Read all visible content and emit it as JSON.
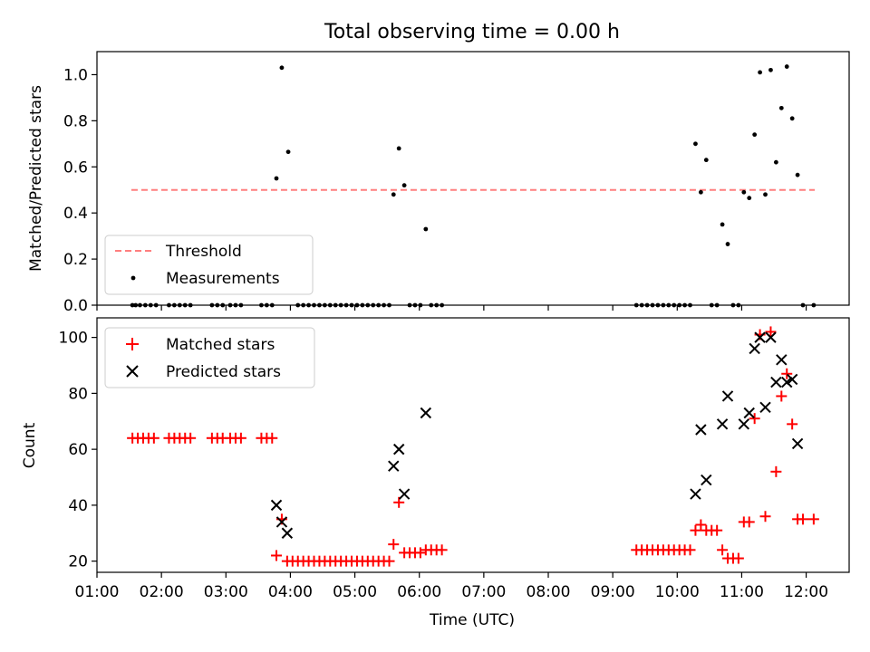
{
  "figure": {
    "title": "Total observing time = 0.00 h",
    "xlabel": "Time (UTC)"
  },
  "colors": {
    "threshold": "#ff7f7f",
    "measurement": "#000000",
    "matched": "#ff0000",
    "predicted": "#000000"
  },
  "chart_data": [
    {
      "type": "scatter",
      "ylabel": "Matched/Predicted stars",
      "xlim": [
        "01:00",
        "12:40"
      ],
      "ylim": [
        0,
        1.1
      ],
      "x_ticks": [
        "01:00",
        "02:00",
        "03:00",
        "04:00",
        "05:00",
        "06:00",
        "07:00",
        "08:00",
        "09:00",
        "10:00",
        "11:00",
        "12:00"
      ],
      "y_ticks": [
        "0.0",
        "0.2",
        "0.4",
        "0.6",
        "0.8",
        "1.0"
      ],
      "grid": false,
      "legend_position": "lower-left",
      "threshold": {
        "name": "Threshold",
        "y": 0.5,
        "x": [
          "01:32",
          "12:08"
        ]
      },
      "series": [
        {
          "name": "Measurements",
          "marker": "dot",
          "points": [
            [
              "01:33",
              0
            ],
            [
              "01:36",
              0
            ],
            [
              "01:40",
              0
            ],
            [
              "01:45",
              0
            ],
            [
              "01:50",
              0
            ],
            [
              "01:55",
              0
            ],
            [
              "02:07",
              0
            ],
            [
              "02:12",
              0
            ],
            [
              "02:17",
              0
            ],
            [
              "02:22",
              0
            ],
            [
              "02:27",
              0
            ],
            [
              "02:47",
              0
            ],
            [
              "02:52",
              0
            ],
            [
              "02:57",
              0
            ],
            [
              "03:04",
              0
            ],
            [
              "03:09",
              0
            ],
            [
              "03:14",
              0
            ],
            [
              "03:33",
              0
            ],
            [
              "03:38",
              0
            ],
            [
              "03:43",
              0
            ],
            [
              "03:47",
              0.55
            ],
            [
              "03:52",
              1.03
            ],
            [
              "03:58",
              0.665
            ],
            [
              "04:07",
              0
            ],
            [
              "04:12",
              0
            ],
            [
              "04:17",
              0
            ],
            [
              "04:22",
              0
            ],
            [
              "04:27",
              0
            ],
            [
              "04:32",
              0
            ],
            [
              "04:37",
              0
            ],
            [
              "04:42",
              0
            ],
            [
              "04:47",
              0
            ],
            [
              "04:52",
              0
            ],
            [
              "04:57",
              0
            ],
            [
              "05:02",
              0
            ],
            [
              "05:07",
              0
            ],
            [
              "05:12",
              0
            ],
            [
              "05:17",
              0
            ],
            [
              "05:22",
              0
            ],
            [
              "05:27",
              0
            ],
            [
              "05:32",
              0
            ],
            [
              "05:36",
              0.48
            ],
            [
              "05:41",
              0.68
            ],
            [
              "05:46",
              0.52
            ],
            [
              "05:51",
              0
            ],
            [
              "05:56",
              0
            ],
            [
              "06:01",
              0
            ],
            [
              "06:06",
              0.33
            ],
            [
              "06:11",
              0
            ],
            [
              "06:16",
              0
            ],
            [
              "06:21",
              0
            ],
            [
              "09:22",
              0
            ],
            [
              "09:27",
              0
            ],
            [
              "09:32",
              0
            ],
            [
              "09:37",
              0
            ],
            [
              "09:42",
              0
            ],
            [
              "09:47",
              0
            ],
            [
              "09:52",
              0
            ],
            [
              "09:57",
              0
            ],
            [
              "10:02",
              0
            ],
            [
              "10:07",
              0
            ],
            [
              "10:12",
              0
            ],
            [
              "10:17",
              0.7
            ],
            [
              "10:22",
              0.49
            ],
            [
              "10:27",
              0.63
            ],
            [
              "10:32",
              0
            ],
            [
              "10:37",
              0
            ],
            [
              "10:42",
              0.35
            ],
            [
              "10:47",
              0.265
            ],
            [
              "10:52",
              0
            ],
            [
              "10:57",
              0
            ],
            [
              "11:02",
              0.49
            ],
            [
              "11:07",
              0.465
            ],
            [
              "11:12",
              0.74
            ],
            [
              "11:17",
              1.01
            ],
            [
              "11:22",
              0.48
            ],
            [
              "11:27",
              1.02
            ],
            [
              "11:32",
              0.62
            ],
            [
              "11:37",
              0.855
            ],
            [
              "11:42",
              1.035
            ],
            [
              "11:47",
              0.81
            ],
            [
              "11:52",
              0.565
            ],
            [
              "11:57",
              0
            ],
            [
              "12:07",
              0
            ]
          ]
        }
      ]
    },
    {
      "type": "scatter",
      "ylabel": "Count",
      "xlim": [
        "01:00",
        "12:40"
      ],
      "ylim": [
        16,
        107
      ],
      "x_ticks": [
        "01:00",
        "02:00",
        "03:00",
        "04:00",
        "05:00",
        "06:00",
        "07:00",
        "08:00",
        "09:00",
        "10:00",
        "11:00",
        "12:00"
      ],
      "y_ticks": [
        "20",
        "40",
        "60",
        "80",
        "100"
      ],
      "grid": false,
      "legend_position": "upper-left",
      "series": [
        {
          "name": "Matched stars",
          "marker": "plus",
          "points": [
            [
              "01:33",
              64
            ],
            [
              "01:38",
              64
            ],
            [
              "01:43",
              64
            ],
            [
              "01:48",
              64
            ],
            [
              "01:53",
              64
            ],
            [
              "02:07",
              64
            ],
            [
              "02:12",
              64
            ],
            [
              "02:17",
              64
            ],
            [
              "02:22",
              64
            ],
            [
              "02:27",
              64
            ],
            [
              "02:47",
              64
            ],
            [
              "02:52",
              64
            ],
            [
              "02:57",
              64
            ],
            [
              "03:04",
              64
            ],
            [
              "03:09",
              64
            ],
            [
              "03:14",
              64
            ],
            [
              "03:33",
              64
            ],
            [
              "03:38",
              64
            ],
            [
              "03:43",
              64
            ],
            [
              "03:47",
              22
            ],
            [
              "03:52",
              35
            ],
            [
              "03:57",
              20
            ],
            [
              "04:02",
              20
            ],
            [
              "04:07",
              20
            ],
            [
              "04:12",
              20
            ],
            [
              "04:17",
              20
            ],
            [
              "04:22",
              20
            ],
            [
              "04:27",
              20
            ],
            [
              "04:32",
              20
            ],
            [
              "04:37",
              20
            ],
            [
              "04:42",
              20
            ],
            [
              "04:47",
              20
            ],
            [
              "04:52",
              20
            ],
            [
              "04:57",
              20
            ],
            [
              "05:02",
              20
            ],
            [
              "05:07",
              20
            ],
            [
              "05:12",
              20
            ],
            [
              "05:17",
              20
            ],
            [
              "05:22",
              20
            ],
            [
              "05:27",
              20
            ],
            [
              "05:32",
              20
            ],
            [
              "05:36",
              26
            ],
            [
              "05:41",
              41
            ],
            [
              "05:46",
              23
            ],
            [
              "05:51",
              23
            ],
            [
              "05:56",
              23
            ],
            [
              "06:01",
              23
            ],
            [
              "06:06",
              24
            ],
            [
              "06:11",
              24
            ],
            [
              "06:16",
              24
            ],
            [
              "06:21",
              24
            ],
            [
              "09:22",
              24
            ],
            [
              "09:27",
              24
            ],
            [
              "09:32",
              24
            ],
            [
              "09:37",
              24
            ],
            [
              "09:42",
              24
            ],
            [
              "09:47",
              24
            ],
            [
              "09:52",
              24
            ],
            [
              "09:57",
              24
            ],
            [
              "10:02",
              24
            ],
            [
              "10:07",
              24
            ],
            [
              "10:12",
              24
            ],
            [
              "10:17",
              31
            ],
            [
              "10:22",
              33
            ],
            [
              "10:27",
              31
            ],
            [
              "10:32",
              31
            ],
            [
              "10:37",
              31
            ],
            [
              "10:42",
              24
            ],
            [
              "10:47",
              21
            ],
            [
              "10:52",
              21
            ],
            [
              "10:57",
              21
            ],
            [
              "11:02",
              34
            ],
            [
              "11:07",
              34
            ],
            [
              "11:12",
              71
            ],
            [
              "11:17",
              101
            ],
            [
              "11:22",
              36
            ],
            [
              "11:27",
              102
            ],
            [
              "11:32",
              52
            ],
            [
              "11:37",
              79
            ],
            [
              "11:42",
              87
            ],
            [
              "11:47",
              69
            ],
            [
              "11:52",
              35
            ],
            [
              "11:57",
              35
            ],
            [
              "12:07",
              35
            ]
          ]
        },
        {
          "name": "Predicted stars",
          "marker": "x",
          "points": [
            [
              "03:47",
              40
            ],
            [
              "03:52",
              34
            ],
            [
              "03:57",
              30
            ],
            [
              "05:36",
              54
            ],
            [
              "05:41",
              60
            ],
            [
              "05:46",
              44
            ],
            [
              "06:06",
              73
            ],
            [
              "10:17",
              44
            ],
            [
              "10:22",
              67
            ],
            [
              "10:27",
              49
            ],
            [
              "10:42",
              69
            ],
            [
              "10:47",
              79
            ],
            [
              "11:02",
              69
            ],
            [
              "11:07",
              73
            ],
            [
              "11:12",
              96
            ],
            [
              "11:17",
              100
            ],
            [
              "11:22",
              75
            ],
            [
              "11:27",
              100
            ],
            [
              "11:32",
              84
            ],
            [
              "11:37",
              92
            ],
            [
              "11:42",
              84
            ],
            [
              "11:47",
              85
            ],
            [
              "11:52",
              62
            ]
          ]
        }
      ]
    }
  ]
}
